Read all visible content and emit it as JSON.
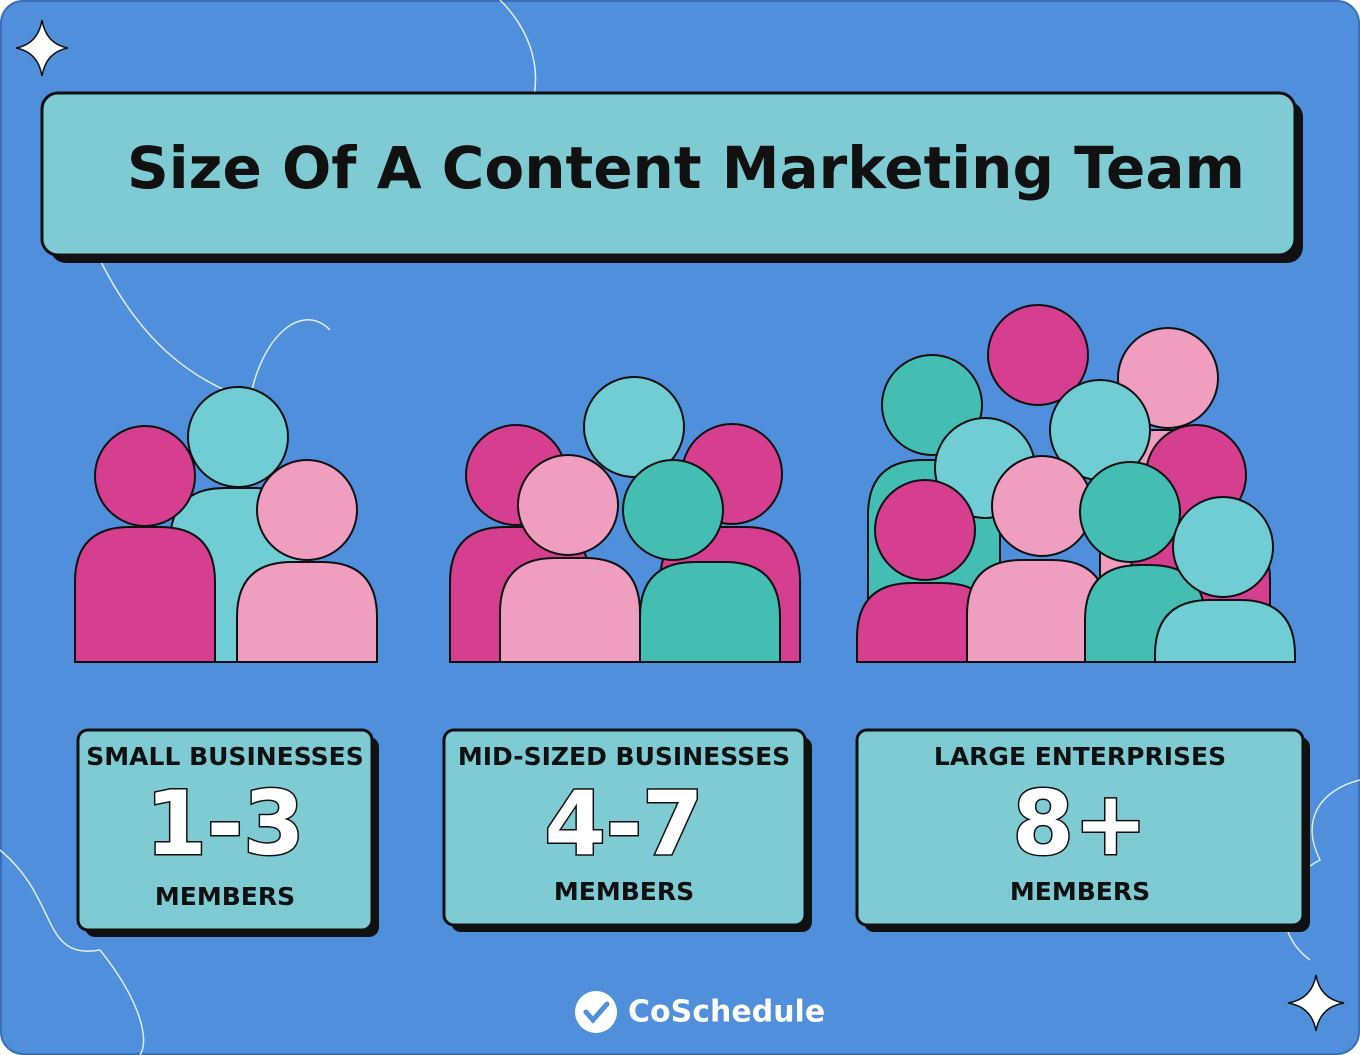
{
  "header": {
    "title": "Size Of A Content Marketing Team"
  },
  "cards": [
    {
      "label": "SMALL BUSINESSES",
      "range": "1-3",
      "unit": "MEMBERS"
    },
    {
      "label": "MID-SIZED BUSINESSES",
      "range": "4-7",
      "unit": "MEMBERS"
    },
    {
      "label": "LARGE ENTERPRISES",
      "range": "8+",
      "unit": "MEMBERS"
    }
  ],
  "footer": {
    "brand": "CoSchedule"
  }
}
